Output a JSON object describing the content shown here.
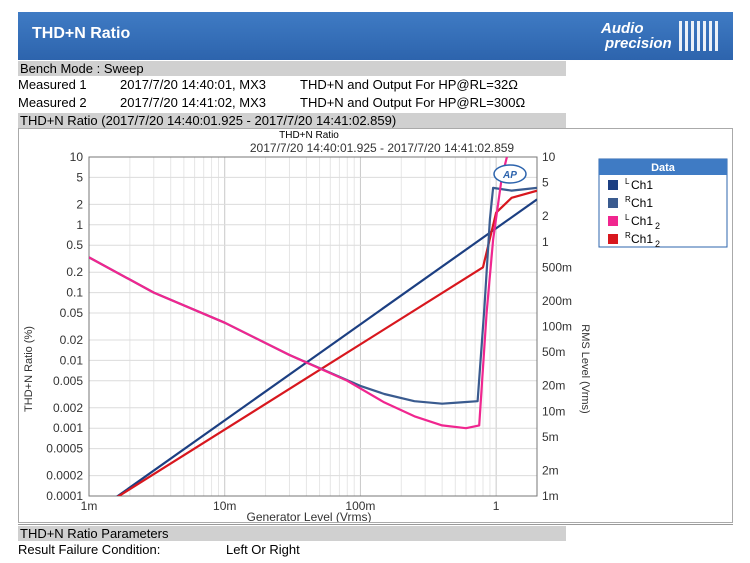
{
  "header": {
    "title": "THD+N Ratio",
    "logo_line1": "Audio",
    "logo_line2": "precision"
  },
  "bench": {
    "label": "Bench Mode : Sweep"
  },
  "measurements": [
    {
      "label": "Measured 1",
      "timestamp": "2017/7/20 14:40:01, MX3",
      "desc": "THD+N and Output For HP@RL=32Ω"
    },
    {
      "label": "Measured 2",
      "timestamp": "2017/7/20 14:41:02, MX3",
      "desc": "THD+N and Output For HP@RL=300Ω"
    }
  ],
  "chart_section": {
    "label": "THD+N Ratio (2017/7/20 14:40:01.925 - 2017/7/20 14:41:02.859)"
  },
  "chart_data": {
    "type": "line",
    "title": "THD+N Ratio",
    "subtitle": "2017/7/20 14:40:01.925 - 2017/7/20 14:41:02.859",
    "xlabel": "Generator Level (Vrms)",
    "ylabel": "THD+N Ratio (%)",
    "y2label": "RMS Level (Vrms)",
    "x_scale": "log",
    "y_scale": "log",
    "xlim": [
      0.001,
      2
    ],
    "ylim": [
      0.0001,
      10
    ],
    "y2lim": [
      0.001,
      10
    ],
    "grid": true,
    "legend_position": "right",
    "legend_title": "Data",
    "x_ticks": [
      {
        "v": 0.001,
        "label": "1m"
      },
      {
        "v": 0.01,
        "label": "10m"
      },
      {
        "v": 0.1,
        "label": "100m"
      },
      {
        "v": 1,
        "label": "1"
      }
    ],
    "y_ticks": [
      {
        "v": 10,
        "label": "10"
      },
      {
        "v": 5,
        "label": "5"
      },
      {
        "v": 2,
        "label": "2"
      },
      {
        "v": 1,
        "label": "1"
      },
      {
        "v": 0.5,
        "label": "0.5"
      },
      {
        "v": 0.2,
        "label": "0.2"
      },
      {
        "v": 0.1,
        "label": "0.1"
      },
      {
        "v": 0.05,
        "label": "0.05"
      },
      {
        "v": 0.02,
        "label": "0.02"
      },
      {
        "v": 0.01,
        "label": "0.01"
      },
      {
        "v": 0.005,
        "label": "0.005"
      },
      {
        "v": 0.002,
        "label": "0.002"
      },
      {
        "v": 0.001,
        "label": "0.001"
      },
      {
        "v": 0.0005,
        "label": "0.0005"
      },
      {
        "v": 0.0002,
        "label": "0.0002"
      },
      {
        "v": 0.0001,
        "label": "0.0001"
      }
    ],
    "y2_ticks": [
      {
        "v": 10,
        "label": "10"
      },
      {
        "v": 5,
        "label": "5"
      },
      {
        "v": 2,
        "label": "2"
      },
      {
        "v": 1,
        "label": "1"
      },
      {
        "v": 0.5,
        "label": "500m"
      },
      {
        "v": 0.2,
        "label": "200m"
      },
      {
        "v": 0.1,
        "label": "100m"
      },
      {
        "v": 0.05,
        "label": "50m"
      },
      {
        "v": 0.02,
        "label": "20m"
      },
      {
        "v": 0.01,
        "label": "10m"
      },
      {
        "v": 0.005,
        "label": "5m"
      },
      {
        "v": 0.002,
        "label": "2m"
      },
      {
        "v": 0.001,
        "label": "1m"
      }
    ],
    "series": [
      {
        "name": "Ch1",
        "ch": "L",
        "sub": "",
        "color": "#1c3f82",
        "axis": "y2",
        "points": [
          [
            0.001,
            0.000575
          ],
          [
            2,
            3.16
          ]
        ]
      },
      {
        "name": "Ch1",
        "ch": "R",
        "sub": "",
        "color": "#3a5b8f",
        "axis": "y",
        "points": [
          [
            0.001,
            0.33
          ],
          [
            0.003,
            0.1
          ],
          [
            0.01,
            0.036
          ],
          [
            0.03,
            0.012
          ],
          [
            0.1,
            0.0042
          ],
          [
            0.15,
            0.0032
          ],
          [
            0.25,
            0.0025
          ],
          [
            0.4,
            0.0023
          ],
          [
            0.55,
            0.0024
          ],
          [
            0.73,
            0.0025
          ],
          [
            0.82,
            0.06
          ],
          [
            0.9,
            1.2
          ],
          [
            0.95,
            3.5
          ],
          [
            1.3,
            3.2
          ],
          [
            2,
            3.5
          ]
        ]
      },
      {
        "name": "Ch1",
        "ch": "L",
        "sub": "2",
        "color": "#f0268f",
        "axis": "y",
        "points": [
          [
            0.001,
            0.33
          ],
          [
            0.003,
            0.1
          ],
          [
            0.01,
            0.036
          ],
          [
            0.03,
            0.012
          ],
          [
            0.08,
            0.005
          ],
          [
            0.15,
            0.0024
          ],
          [
            0.25,
            0.0015
          ],
          [
            0.4,
            0.0011
          ],
          [
            0.6,
            0.001
          ],
          [
            0.75,
            0.0011
          ],
          [
            0.85,
            0.05
          ],
          [
            0.95,
            0.6
          ],
          [
            1.1,
            5
          ],
          [
            1.2,
            10
          ]
        ]
      },
      {
        "name": "Ch1",
        "ch": "R",
        "sub": "2",
        "color": "#d8171e",
        "axis": "y2",
        "points": [
          [
            0.001,
            0.0006
          ],
          [
            0.8,
            0.5
          ],
          [
            1.0,
            2.2
          ],
          [
            1.3,
            3.3
          ],
          [
            2,
            4.0
          ]
        ]
      }
    ]
  },
  "params": {
    "heading": "THD+N Ratio Parameters",
    "label": "Result Failure Condition:",
    "value": "Left Or Right"
  }
}
